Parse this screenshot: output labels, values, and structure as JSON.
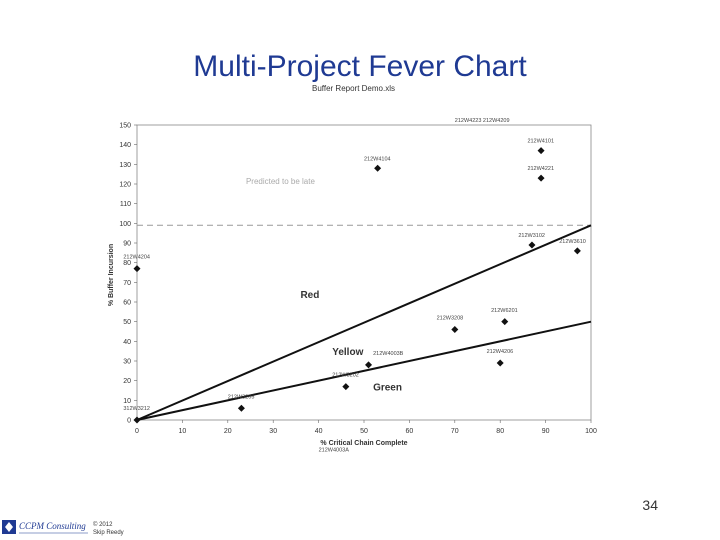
{
  "slide": {
    "title": "Multi-Project Fever Chart",
    "page_number": "34",
    "copyright_line1": "© 2012",
    "copyright_line2": "Skip Reedy",
    "logo_text": "CCPM Consulting"
  },
  "chart_data": {
    "type": "scatter",
    "title": "Buffer Report Demo.xls",
    "xlabel": "% Critical Chain Complete",
    "ylabel": "% Buffer Incursion",
    "xlim": [
      0,
      100
    ],
    "ylim": [
      0,
      150
    ],
    "xticks": [
      0,
      10,
      20,
      30,
      40,
      50,
      60,
      70,
      80,
      90,
      100
    ],
    "yticks": [
      0,
      10,
      20,
      30,
      40,
      50,
      60,
      70,
      80,
      90,
      100,
      110,
      120,
      130,
      140,
      150
    ],
    "grid": false,
    "zone_lines": [
      {
        "name": "Red",
        "x": [
          0,
          100
        ],
        "y": [
          0,
          99
        ]
      },
      {
        "name": "Yellow",
        "x": [
          0,
          100
        ],
        "y": [
          0,
          50
        ]
      }
    ],
    "reference_line": {
      "y": 99,
      "style": "dashed"
    },
    "zone_labels": [
      {
        "text": "Red",
        "x": 36,
        "y": 62
      },
      {
        "text": "Yellow",
        "x": 43,
        "y": 33
      },
      {
        "text": "Green",
        "x": 52,
        "y": 15
      },
      {
        "text": "Predicted to be late",
        "x": 24,
        "y": 120
      }
    ],
    "points": [
      {
        "x": 0,
        "y": 0
      },
      {
        "x": 0,
        "y": 77
      },
      {
        "x": 23,
        "y": 6
      },
      {
        "x": 46,
        "y": 17
      },
      {
        "x": 51,
        "y": 28
      },
      {
        "x": 53,
        "y": 128
      },
      {
        "x": 70,
        "y": 46
      },
      {
        "x": 80,
        "y": 29
      },
      {
        "x": 81,
        "y": 50
      },
      {
        "x": 87,
        "y": 89
      },
      {
        "x": 89,
        "y": 137
      },
      {
        "x": 89,
        "y": 123
      },
      {
        "x": 97,
        "y": 86
      }
    ],
    "point_labels": [
      {
        "text": "312W3212",
        "x": -3,
        "y": 5
      },
      {
        "text": "212W4204",
        "x": -3,
        "y": 82
      },
      {
        "text": "212W3205",
        "x": 20,
        "y": 11
      },
      {
        "text": "212W3202",
        "x": 43,
        "y": 22
      },
      {
        "text": "212W4003B",
        "x": 52,
        "y": 33
      },
      {
        "text": "212W4104",
        "x": 50,
        "y": 132
      },
      {
        "text": "212W3208",
        "x": 66,
        "y": 51
      },
      {
        "text": "212W4206",
        "x": 77,
        "y": 34
      },
      {
        "text": "212W6201",
        "x": 78,
        "y": 55
      },
      {
        "text": "212W3102",
        "x": 84,
        "y": 93
      },
      {
        "text": "212W4101",
        "x": 86,
        "y": 141
      },
      {
        "text": "212W4221",
        "x": 86,
        "y": 127
      },
      {
        "text": "212W3610",
        "x": 93,
        "y": 90
      },
      {
        "text": "212W4223 212W4209",
        "x": 70,
        "y": 151.5
      },
      {
        "text": "212W4003A",
        "x": 40,
        "y": -16
      }
    ]
  }
}
